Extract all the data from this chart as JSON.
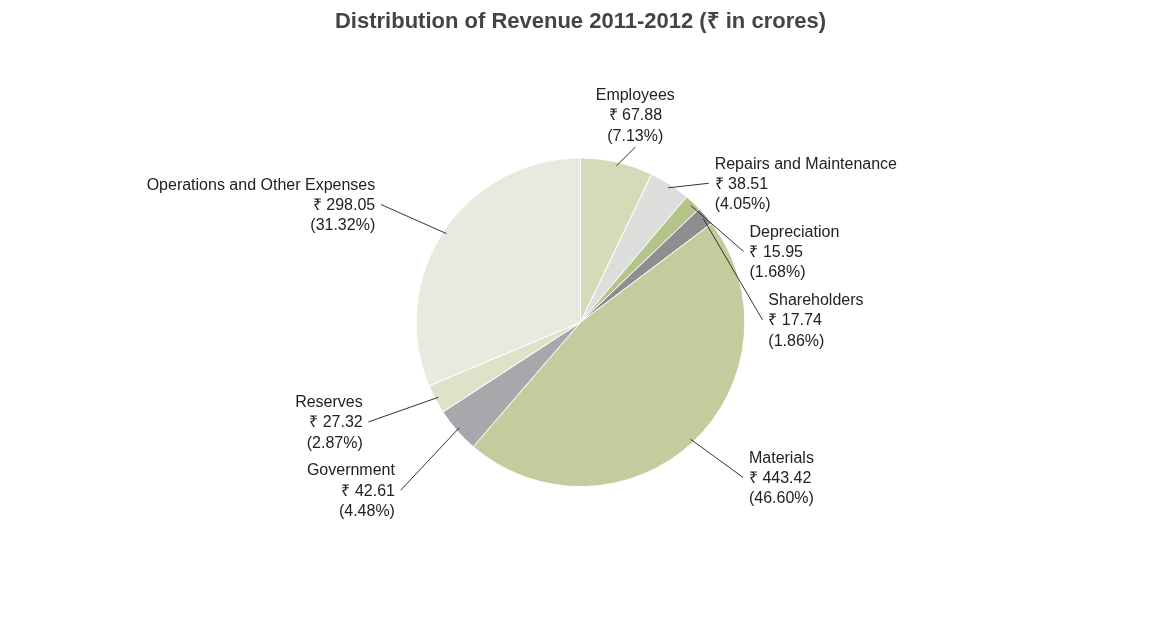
{
  "chart_data": {
    "type": "pie",
    "title": "Distribution of Revenue 2011-2012 (₹ in crores)",
    "categories": [
      "Employees",
      "Repairs and Maintenance",
      "Depreciation",
      "Shareholders",
      "Materials",
      "Government",
      "Reserves",
      "Operations and Other Expenses"
    ],
    "values": [
      67.88,
      38.51,
      15.95,
      17.74,
      443.42,
      42.61,
      27.32,
      298.05
    ],
    "colors": [
      "#d4dbb8",
      "#dcdedc",
      "#b5c38a",
      "#8c8e90",
      "#c2cc9c",
      "#a6a8ab",
      "#dde2c8",
      "#e9e9df"
    ],
    "value_labels": [
      "₹ 67.88\n(7.13%)",
      "₹ 38.51\n(4.05%)",
      "₹ 15.95\n(1.68%)",
      "₹ 17.74\n(1.86%)",
      "₹ 443.42\n(46.60%)",
      "₹ 42.61\n(4.48%)",
      "₹ 27.32\n(2.87%)",
      "₹ 298.05\n(31.32%)"
    ]
  }
}
